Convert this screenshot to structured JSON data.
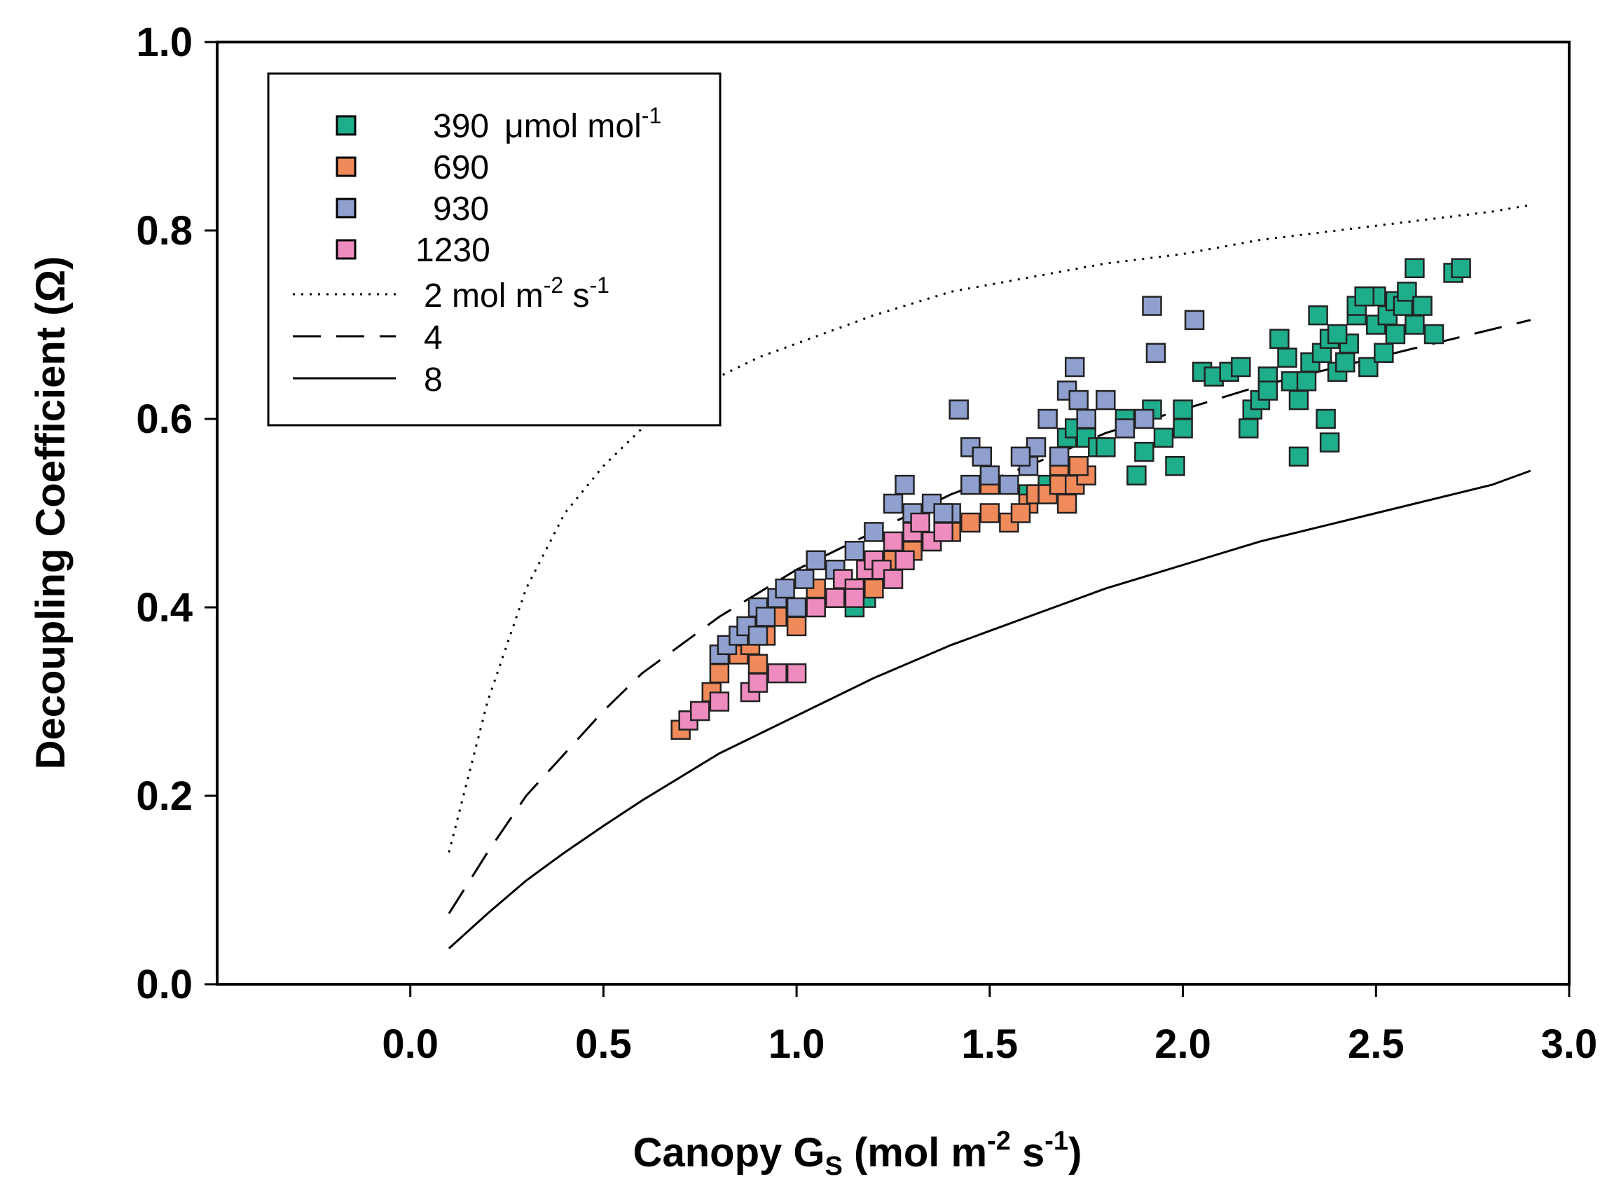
{
  "chart_data": {
    "type": "scatter",
    "xlabel": {
      "main": "Canopy G",
      "sub": "S",
      "rest": " (mol m",
      "sup": "-2",
      "tail": " s",
      "sup2": "-1",
      "end": ")"
    },
    "ylabel": "Decoupling Coefficient (Ω)",
    "xlim": [
      -0.5,
      3.0
    ],
    "ylim": [
      0.0,
      1.0
    ],
    "x_ticks": [
      "0.0",
      "0.5",
      "1.0",
      "1.5",
      "2.0",
      "2.5",
      "3.0"
    ],
    "y_ticks": [
      "0.0",
      "0.2",
      "0.4",
      "0.6",
      "0.8",
      "1.0"
    ],
    "grid": false,
    "legend_position": "top-left",
    "colors": {
      "s390": "#1fae8c",
      "s690": "#f08a5a",
      "s930": "#8fa0cf",
      "s1230": "#ee8bbf"
    },
    "legend": {
      "s390": {
        "value": "390",
        "unit": "μmol mol",
        "sup": "-1"
      },
      "s690": {
        "value": "690"
      },
      "s930": {
        "value": "930"
      },
      "s1230": {
        "value": "1230"
      },
      "l2": {
        "value": "2 mol m",
        "sup": "-2",
        "tail": " s",
        "sup2": "-1"
      },
      "l4": {
        "value": "4"
      },
      "l8": {
        "value": "8"
      }
    },
    "lines": [
      {
        "key": "l2",
        "style": "dotted",
        "x": [
          0.1,
          0.2,
          0.3,
          0.4,
          0.5,
          0.6,
          0.7,
          0.8,
          0.9,
          1.0,
          1.2,
          1.4,
          1.6,
          1.8,
          2.0,
          2.2,
          2.4,
          2.6,
          2.8,
          2.9
        ],
        "y": [
          0.14,
          0.3,
          0.42,
          0.5,
          0.55,
          0.59,
          0.62,
          0.645,
          0.665,
          0.68,
          0.71,
          0.735,
          0.75,
          0.765,
          0.775,
          0.79,
          0.8,
          0.81,
          0.82,
          0.827
        ]
      },
      {
        "key": "l4",
        "style": "dashed",
        "x": [
          0.1,
          0.2,
          0.3,
          0.4,
          0.5,
          0.6,
          0.7,
          0.8,
          0.9,
          1.0,
          1.2,
          1.4,
          1.6,
          1.8,
          2.0,
          2.2,
          2.4,
          2.6,
          2.8,
          2.9
        ],
        "y": [
          0.075,
          0.14,
          0.2,
          0.245,
          0.29,
          0.33,
          0.36,
          0.39,
          0.415,
          0.44,
          0.48,
          0.52,
          0.55,
          0.585,
          0.61,
          0.635,
          0.655,
          0.675,
          0.695,
          0.705
        ]
      },
      {
        "key": "l8",
        "style": "solid",
        "x": [
          0.1,
          0.2,
          0.3,
          0.4,
          0.5,
          0.6,
          0.7,
          0.8,
          0.9,
          1.0,
          1.2,
          1.4,
          1.6,
          1.8,
          2.0,
          2.2,
          2.4,
          2.6,
          2.8,
          2.9
        ],
        "y": [
          0.038,
          0.075,
          0.11,
          0.14,
          0.168,
          0.195,
          0.22,
          0.245,
          0.265,
          0.285,
          0.325,
          0.36,
          0.39,
          0.42,
          0.445,
          0.47,
          0.49,
          0.51,
          0.53,
          0.545
        ]
      }
    ],
    "series": [
      {
        "key": "s390",
        "points": [
          [
            1.15,
            0.4
          ],
          [
            1.18,
            0.41
          ],
          [
            1.6,
            0.52
          ],
          [
            1.65,
            0.53
          ],
          [
            1.7,
            0.58
          ],
          [
            1.72,
            0.59
          ],
          [
            1.75,
            0.58
          ],
          [
            1.78,
            0.57
          ],
          [
            1.8,
            0.57
          ],
          [
            1.85,
            0.6
          ],
          [
            1.88,
            0.54
          ],
          [
            1.9,
            0.565
          ],
          [
            1.92,
            0.61
          ],
          [
            1.95,
            0.58
          ],
          [
            1.98,
            0.55
          ],
          [
            2.0,
            0.59
          ],
          [
            2.0,
            0.61
          ],
          [
            2.05,
            0.65
          ],
          [
            2.08,
            0.645
          ],
          [
            2.12,
            0.65
          ],
          [
            2.15,
            0.655
          ],
          [
            2.17,
            0.59
          ],
          [
            2.18,
            0.61
          ],
          [
            2.2,
            0.62
          ],
          [
            2.22,
            0.645
          ],
          [
            2.25,
            0.685
          ],
          [
            2.27,
            0.665
          ],
          [
            2.28,
            0.64
          ],
          [
            2.3,
            0.56
          ],
          [
            2.3,
            0.62
          ],
          [
            2.32,
            0.64
          ],
          [
            2.33,
            0.66
          ],
          [
            2.35,
            0.71
          ],
          [
            2.36,
            0.67
          ],
          [
            2.37,
            0.6
          ],
          [
            2.38,
            0.575
          ],
          [
            2.38,
            0.685
          ],
          [
            2.4,
            0.65
          ],
          [
            2.42,
            0.66
          ],
          [
            2.43,
            0.68
          ],
          [
            2.45,
            0.71
          ],
          [
            2.45,
            0.72
          ],
          [
            2.48,
            0.655
          ],
          [
            2.5,
            0.7
          ],
          [
            2.5,
            0.73
          ],
          [
            2.52,
            0.67
          ],
          [
            2.53,
            0.71
          ],
          [
            2.55,
            0.725
          ],
          [
            2.55,
            0.69
          ],
          [
            2.57,
            0.72
          ],
          [
            2.58,
            0.735
          ],
          [
            2.6,
            0.7
          ],
          [
            2.6,
            0.76
          ],
          [
            2.62,
            0.72
          ],
          [
            2.7,
            0.755
          ],
          [
            2.72,
            0.76
          ],
          [
            2.65,
            0.69
          ],
          [
            2.4,
            0.69
          ],
          [
            2.22,
            0.63
          ],
          [
            2.47,
            0.73
          ]
        ]
      },
      {
        "key": "s690",
        "points": [
          [
            0.7,
            0.27
          ],
          [
            0.72,
            0.28
          ],
          [
            0.78,
            0.31
          ],
          [
            0.8,
            0.33
          ],
          [
            0.85,
            0.35
          ],
          [
            0.88,
            0.36
          ],
          [
            0.9,
            0.34
          ],
          [
            0.92,
            0.37
          ],
          [
            0.95,
            0.39
          ],
          [
            1.0,
            0.38
          ],
          [
            1.05,
            0.42
          ],
          [
            1.1,
            0.41
          ],
          [
            1.12,
            0.43
          ],
          [
            1.15,
            0.42
          ],
          [
            1.2,
            0.42
          ],
          [
            1.25,
            0.45
          ],
          [
            1.3,
            0.46
          ],
          [
            1.35,
            0.47
          ],
          [
            1.4,
            0.48
          ],
          [
            1.45,
            0.49
          ],
          [
            1.5,
            0.5
          ],
          [
            1.55,
            0.49
          ],
          [
            1.6,
            0.51
          ],
          [
            1.62,
            0.52
          ],
          [
            1.65,
            0.52
          ],
          [
            1.68,
            0.53
          ],
          [
            1.7,
            0.51
          ],
          [
            1.72,
            0.53
          ],
          [
            1.75,
            0.54
          ],
          [
            1.73,
            0.55
          ],
          [
            1.68,
            0.55
          ],
          [
            1.58,
            0.5
          ],
          [
            1.5,
            0.53
          ]
        ]
      },
      {
        "key": "s930",
        "points": [
          [
            0.8,
            0.35
          ],
          [
            0.82,
            0.36
          ],
          [
            0.85,
            0.37
          ],
          [
            0.87,
            0.38
          ],
          [
            0.9,
            0.4
          ],
          [
            0.92,
            0.39
          ],
          [
            0.95,
            0.41
          ],
          [
            0.97,
            0.42
          ],
          [
            1.0,
            0.4
          ],
          [
            1.02,
            0.43
          ],
          [
            1.05,
            0.45
          ],
          [
            1.1,
            0.44
          ],
          [
            1.15,
            0.46
          ],
          [
            1.2,
            0.48
          ],
          [
            1.25,
            0.51
          ],
          [
            1.28,
            0.53
          ],
          [
            1.3,
            0.5
          ],
          [
            1.35,
            0.51
          ],
          [
            1.4,
            0.5
          ],
          [
            1.42,
            0.61
          ],
          [
            1.45,
            0.57
          ],
          [
            1.48,
            0.56
          ],
          [
            1.5,
            0.54
          ],
          [
            1.55,
            0.53
          ],
          [
            1.6,
            0.55
          ],
          [
            1.62,
            0.57
          ],
          [
            1.65,
            0.6
          ],
          [
            1.68,
            0.56
          ],
          [
            1.7,
            0.63
          ],
          [
            1.72,
            0.655
          ],
          [
            1.73,
            0.62
          ],
          [
            1.75,
            0.6
          ],
          [
            1.8,
            0.62
          ],
          [
            1.85,
            0.59
          ],
          [
            1.9,
            0.6
          ],
          [
            1.92,
            0.72
          ],
          [
            1.93,
            0.67
          ],
          [
            2.03,
            0.705
          ],
          [
            1.58,
            0.56
          ],
          [
            1.45,
            0.53
          ],
          [
            1.38,
            0.5
          ],
          [
            0.9,
            0.37
          ]
        ]
      },
      {
        "key": "s1230",
        "points": [
          [
            0.72,
            0.28
          ],
          [
            0.75,
            0.29
          ],
          [
            0.8,
            0.3
          ],
          [
            0.88,
            0.31
          ],
          [
            0.9,
            0.32
          ],
          [
            0.95,
            0.33
          ],
          [
            1.0,
            0.33
          ],
          [
            1.05,
            0.4
          ],
          [
            1.1,
            0.41
          ],
          [
            1.12,
            0.43
          ],
          [
            1.15,
            0.42
          ],
          [
            1.18,
            0.44
          ],
          [
            1.2,
            0.45
          ],
          [
            1.22,
            0.44
          ],
          [
            1.25,
            0.47
          ],
          [
            1.28,
            0.45
          ],
          [
            1.3,
            0.48
          ],
          [
            1.32,
            0.49
          ],
          [
            1.35,
            0.47
          ],
          [
            1.38,
            0.48
          ],
          [
            1.25,
            0.43
          ],
          [
            1.15,
            0.41
          ]
        ]
      }
    ]
  }
}
